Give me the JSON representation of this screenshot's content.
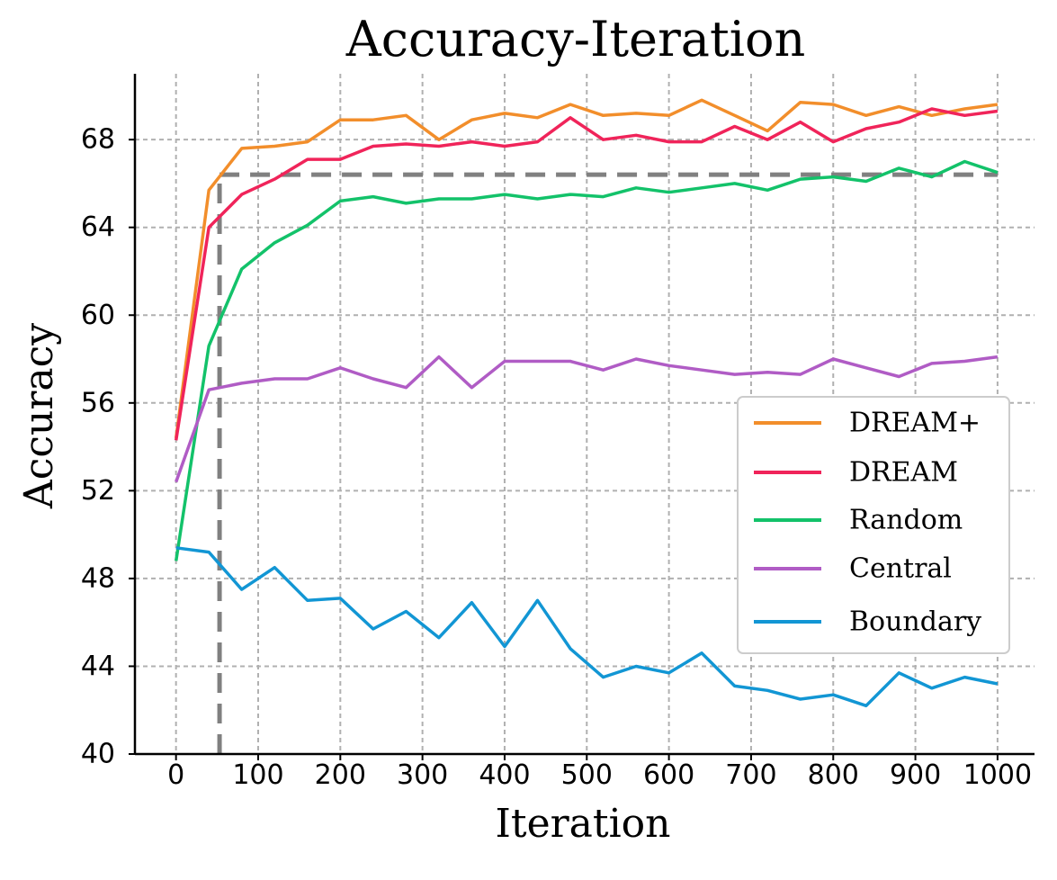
{
  "chart_data": {
    "type": "line",
    "title": "Accuracy-Iteration",
    "xlabel": "Iteration",
    "ylabel": "Accuracy",
    "xlim": [
      -50,
      1045
    ],
    "ylim": [
      40,
      71
    ],
    "xticks": [
      0,
      100,
      200,
      300,
      400,
      500,
      600,
      700,
      800,
      900,
      1000
    ],
    "xtick_labels": [
      "0",
      "100",
      "200",
      "300",
      "400",
      "500",
      "600",
      "700",
      "800",
      "900",
      "1000"
    ],
    "yticks": [
      40,
      44,
      48,
      52,
      56,
      60,
      64,
      68
    ],
    "ytick_labels": [
      "40",
      "44",
      "48",
      "52",
      "56",
      "60",
      "64",
      "68"
    ],
    "grid": true,
    "legend_position": "center-right",
    "x": [
      0,
      40,
      80,
      120,
      160,
      200,
      240,
      280,
      320,
      360,
      400,
      440,
      480,
      520,
      560,
      600,
      640,
      680,
      720,
      760,
      800,
      840,
      880,
      920,
      960,
      1000
    ],
    "series": [
      {
        "name": "DREAM+",
        "color": "#f28e2b",
        "values": [
          54.4,
          65.7,
          67.6,
          67.7,
          67.9,
          68.9,
          68.9,
          69.1,
          68.0,
          68.9,
          69.2,
          69.0,
          69.6,
          69.1,
          69.2,
          69.1,
          69.8,
          69.1,
          68.4,
          69.7,
          69.6,
          69.1,
          69.5,
          69.1,
          69.4,
          69.6
        ]
      },
      {
        "name": "DREAM",
        "color": "#f0245a",
        "values": [
          54.3,
          64.0,
          65.5,
          66.2,
          67.1,
          67.1,
          67.7,
          67.8,
          67.7,
          67.9,
          67.7,
          67.9,
          69.0,
          68.0,
          68.2,
          67.9,
          67.9,
          68.6,
          68.0,
          68.8,
          67.9,
          68.5,
          68.8,
          69.4,
          69.1,
          69.3
        ]
      },
      {
        "name": "Random",
        "color": "#13c26a",
        "values": [
          48.8,
          58.6,
          62.1,
          63.3,
          64.1,
          65.2,
          65.4,
          65.1,
          65.3,
          65.3,
          65.5,
          65.3,
          65.5,
          65.4,
          65.8,
          65.6,
          65.8,
          66.0,
          65.7,
          66.2,
          66.3,
          66.1,
          66.7,
          66.3,
          67.0,
          66.5
        ]
      },
      {
        "name": "Central",
        "color": "#b05cc5",
        "values": [
          52.4,
          56.6,
          56.9,
          57.1,
          57.1,
          57.6,
          57.1,
          56.7,
          58.1,
          56.7,
          57.9,
          57.9,
          57.9,
          57.5,
          58.0,
          57.7,
          57.5,
          57.3,
          57.4,
          57.3,
          58.0,
          57.6,
          57.2,
          57.8,
          57.9,
          58.1
        ]
      },
      {
        "name": "Boundary",
        "color": "#1296d4",
        "values": [
          49.4,
          49.2,
          47.5,
          48.5,
          47.0,
          47.1,
          45.7,
          46.5,
          45.3,
          46.9,
          44.9,
          47.0,
          44.8,
          43.5,
          44.0,
          43.7,
          44.6,
          43.1,
          42.9,
          42.5,
          42.7,
          42.2,
          43.7,
          43.0,
          43.5,
          43.2
        ]
      }
    ],
    "annotations": [
      {
        "type": "reference-line",
        "orientation": "horizontal",
        "y": 66.4,
        "from_x": 53,
        "to_x": 1000,
        "style": "dashed",
        "color": "#808080"
      },
      {
        "type": "reference-line",
        "orientation": "vertical",
        "x": 53,
        "from_y": 40,
        "to_y": 66.4,
        "style": "dashed",
        "color": "#808080"
      }
    ]
  }
}
